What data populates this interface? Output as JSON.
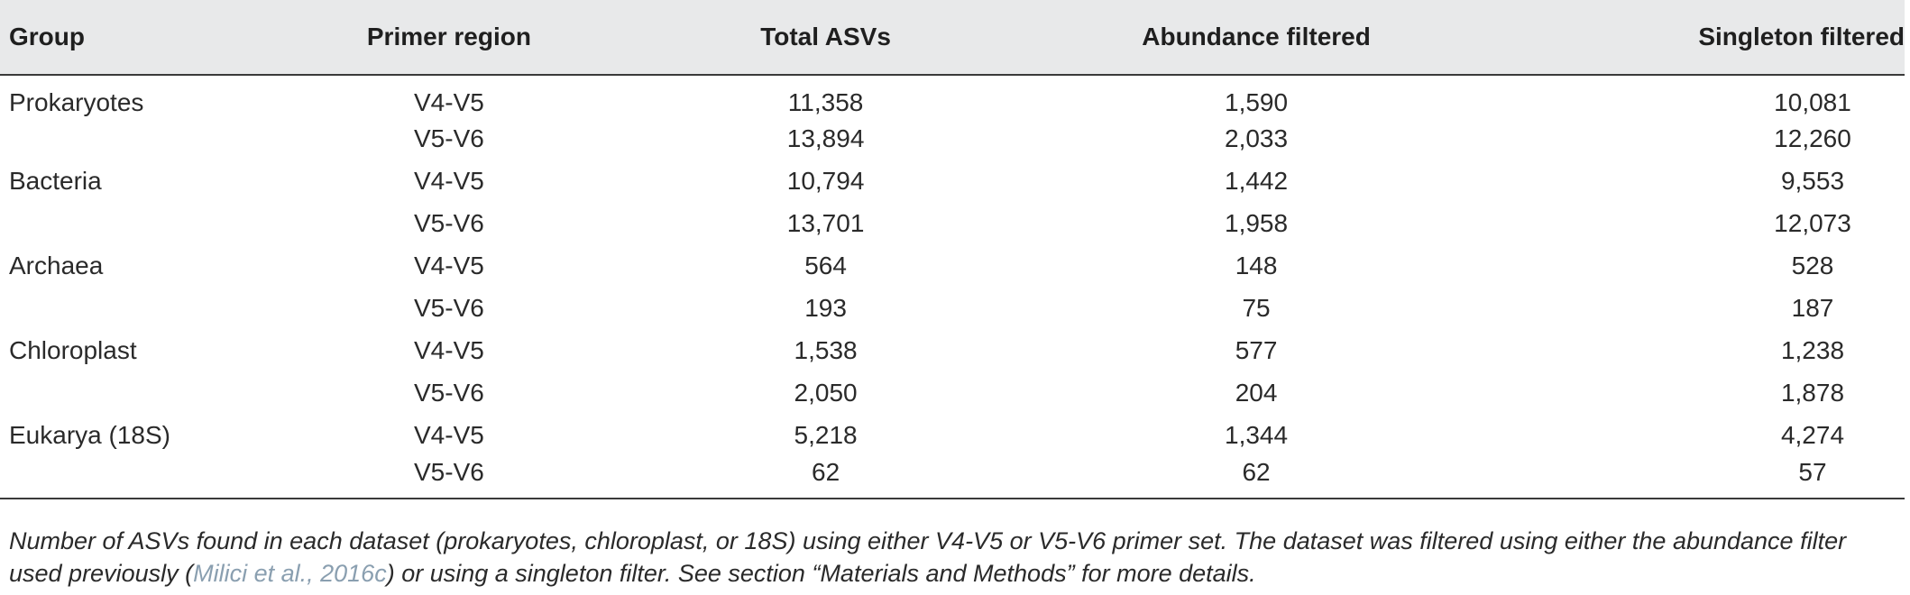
{
  "table": {
    "headers": [
      "Group",
      "Primer region",
      "Total ASVs",
      "Abundance filtered",
      "Singleton filtered"
    ],
    "rows": [
      {
        "group": "Prokaryotes",
        "primer": "V4-V5",
        "total": "11,358",
        "abundance": "1,590",
        "singleton": "10,081"
      },
      {
        "group": "",
        "primer": "V5-V6",
        "total": "13,894",
        "abundance": "2,033",
        "singleton": "12,260"
      },
      {
        "group": "Bacteria",
        "primer": "V4-V5",
        "total": "10,794",
        "abundance": "1,442",
        "singleton": "9,553"
      },
      {
        "group": "",
        "primer": "V5-V6",
        "total": "13,701",
        "abundance": "1,958",
        "singleton": "12,073"
      },
      {
        "group": "Archaea",
        "primer": "V4-V5",
        "total": "564",
        "abundance": "148",
        "singleton": "528"
      },
      {
        "group": "",
        "primer": "V5-V6",
        "total": "193",
        "abundance": "75",
        "singleton": "187"
      },
      {
        "group": "Chloroplast",
        "primer": "V4-V5",
        "total": "1,538",
        "abundance": "577",
        "singleton": "1,238"
      },
      {
        "group": "",
        "primer": "V5-V6",
        "total": "2,050",
        "abundance": "204",
        "singleton": "1,878"
      },
      {
        "group": "Eukarya (18S)",
        "primer": "V4-V5",
        "total": "5,218",
        "abundance": "1,344",
        "singleton": "4,274"
      },
      {
        "group": "",
        "primer": "V5-V6",
        "total": "62",
        "abundance": "62",
        "singleton": "57"
      }
    ]
  },
  "note": {
    "before": "Number of ASVs found in each dataset (prokaryotes, chloroplast, or 18S) using either V4-V5 or V5-V6 primer set. The dataset was filtered using either the abundance filter used previously (",
    "citation": "Milici et al., 2016c",
    "after": ") or using a singleton filter. See section “Materials and Methods” for more details."
  }
}
